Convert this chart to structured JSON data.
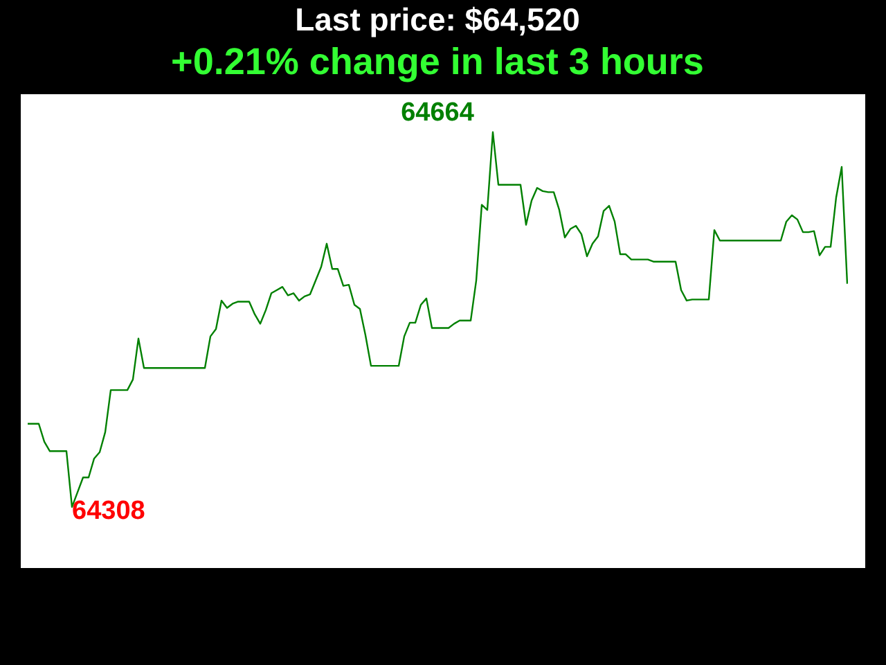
{
  "chart_data": {
    "type": "line",
    "title": "Last price: $64,520",
    "subtitle": "+0.21% change in last 3 hours",
    "categories": [
      null,
      null,
      null,
      null,
      null,
      null,
      null,
      null,
      null,
      null,
      null,
      null,
      null,
      null,
      null,
      null,
      null,
      null,
      null,
      null,
      null,
      null,
      null,
      null,
      null,
      null,
      null,
      null,
      null,
      null,
      null,
      null,
      null,
      null,
      null,
      null,
      null,
      null,
      null,
      null,
      null,
      null,
      null,
      null,
      null,
      null,
      null,
      null,
      null,
      null,
      null,
      null,
      null,
      null,
      null,
      null,
      null,
      null,
      null,
      null,
      null,
      null,
      null,
      null,
      null,
      null,
      null,
      null,
      null,
      null,
      null,
      null,
      null,
      null,
      null,
      null,
      null,
      null,
      null,
      null,
      null,
      null,
      null,
      null,
      null,
      null,
      null,
      null,
      null,
      null,
      null,
      null,
      null,
      null,
      null,
      null,
      null,
      null,
      null,
      null,
      null,
      null,
      null,
      null,
      null,
      null,
      null,
      null,
      null,
      null,
      null,
      null,
      null,
      null,
      null,
      null,
      null,
      null,
      null,
      null,
      null,
      null,
      null,
      null,
      null,
      null,
      null,
      null,
      null,
      null,
      null,
      null,
      null,
      null,
      null,
      null,
      null,
      null,
      null,
      null,
      null,
      null,
      null,
      null,
      null,
      null,
      null,
      null,
      null
    ],
    "series": [
      {
        "color": "#008000",
        "values": [
          64387,
          64387,
          64387,
          64370,
          64361,
          64361,
          64361,
          64361,
          64308,
          64322,
          64336,
          64336,
          64354,
          64360,
          64379,
          64419,
          64419,
          64419,
          64419,
          64429,
          64468,
          64440,
          64440,
          64440,
          64440,
          64440,
          64440,
          64440,
          64440,
          64440,
          64440,
          64440,
          64440,
          64470,
          64477,
          64504,
          64497,
          64501,
          64503,
          64503,
          64503,
          64491,
          64482,
          64495,
          64511,
          64514,
          64517,
          64509,
          64511,
          64504,
          64508,
          64510,
          64523,
          64536,
          64558,
          64534,
          64534,
          64518,
          64519,
          64500,
          64496,
          64471,
          64442,
          64442,
          64442,
          64442,
          64442,
          64442,
          64470,
          64483,
          64483,
          64500,
          64506,
          64478,
          64478,
          64478,
          64478,
          64482,
          64485,
          64485,
          64485,
          64523,
          64595,
          64590,
          64664,
          64614,
          64614,
          64614,
          64614,
          64614,
          64576,
          64599,
          64611,
          64608,
          64607,
          64607,
          64590,
          64564,
          64572,
          64575,
          64567,
          64546,
          64558,
          64565,
          64589,
          64594,
          64579,
          64548,
          64548,
          64543,
          64543,
          64543,
          64543,
          64541,
          64541,
          64541,
          64541,
          64541,
          64514,
          64504,
          64505,
          64505,
          64505,
          64505,
          64571,
          64561,
          64561,
          64561,
          64561,
          64561,
          64561,
          64561,
          64561,
          64561,
          64561,
          64561,
          64561,
          64579,
          64585,
          64581,
          64569,
          64569,
          64570,
          64547,
          64555,
          64555,
          64602,
          64631,
          64520
        ],
        "value_labels": [
          null,
          null,
          null,
          null,
          null,
          null,
          null,
          null,
          "64308",
          null,
          null,
          null,
          null,
          null,
          null,
          null,
          null,
          null,
          null,
          null,
          null,
          null,
          null,
          null,
          null,
          null,
          null,
          null,
          null,
          null,
          null,
          null,
          null,
          null,
          null,
          null,
          null,
          null,
          null,
          null,
          null,
          null,
          null,
          null,
          null,
          null,
          null,
          null,
          null,
          null,
          null,
          null,
          null,
          null,
          null,
          null,
          null,
          null,
          null,
          null,
          null,
          null,
          null,
          null,
          null,
          null,
          null,
          null,
          null,
          null,
          null,
          null,
          null,
          null,
          null,
          null,
          null,
          null,
          null,
          null,
          null,
          null,
          null,
          null,
          "64664",
          null,
          null,
          null,
          null,
          null,
          null,
          null,
          null,
          null,
          null,
          null,
          null,
          null,
          null,
          null,
          null,
          null,
          null,
          null,
          null,
          null,
          null,
          null,
          null,
          null,
          null,
          null,
          null,
          null,
          null,
          null,
          null,
          null,
          null,
          null,
          null,
          null,
          null,
          null,
          null,
          null,
          null,
          null,
          null,
          null,
          null,
          null,
          null,
          null,
          null,
          null,
          null,
          null,
          null,
          null,
          null,
          null,
          null,
          null,
          null,
          null,
          null,
          null,
          null
        ]
      }
    ],
    "legend": false,
    "marker": "none",
    "line_style": "solid"
  }
}
